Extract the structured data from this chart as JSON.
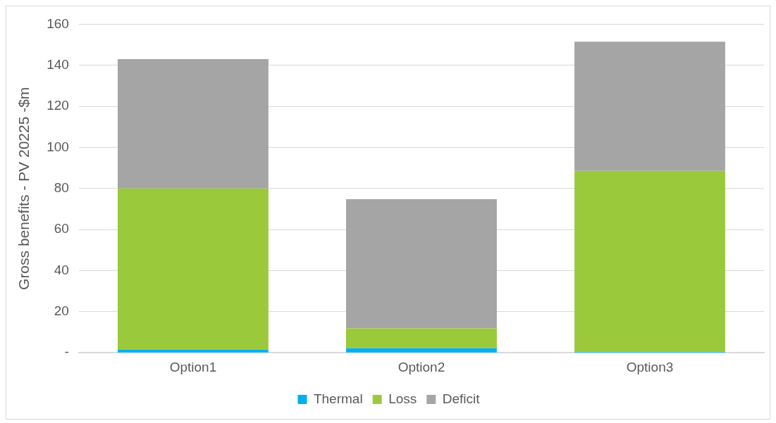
{
  "chart_data": {
    "type": "bar",
    "stacked": true,
    "ylabel": "Gross benefits - PV 20225 -$m",
    "categories": [
      "Option1",
      "Option2",
      "Option3"
    ],
    "series": [
      {
        "name": "Thermal",
        "color": "#00b0f0",
        "values": [
          1.5,
          2.2,
          0.5
        ]
      },
      {
        "name": "Loss",
        "color": "#9bc93c",
        "values": [
          78.5,
          9.7,
          88.1
        ]
      },
      {
        "name": "Deficit",
        "color": "#a5a5a5",
        "values": [
          63,
          62.9,
          62.9
        ]
      }
    ],
    "ylim": [
      0,
      160
    ],
    "yticks": [
      {
        "value": 0,
        "label": "-"
      },
      20,
      40,
      60,
      80,
      100,
      120,
      140,
      160
    ],
    "grid": "y",
    "legend": "bottom"
  }
}
